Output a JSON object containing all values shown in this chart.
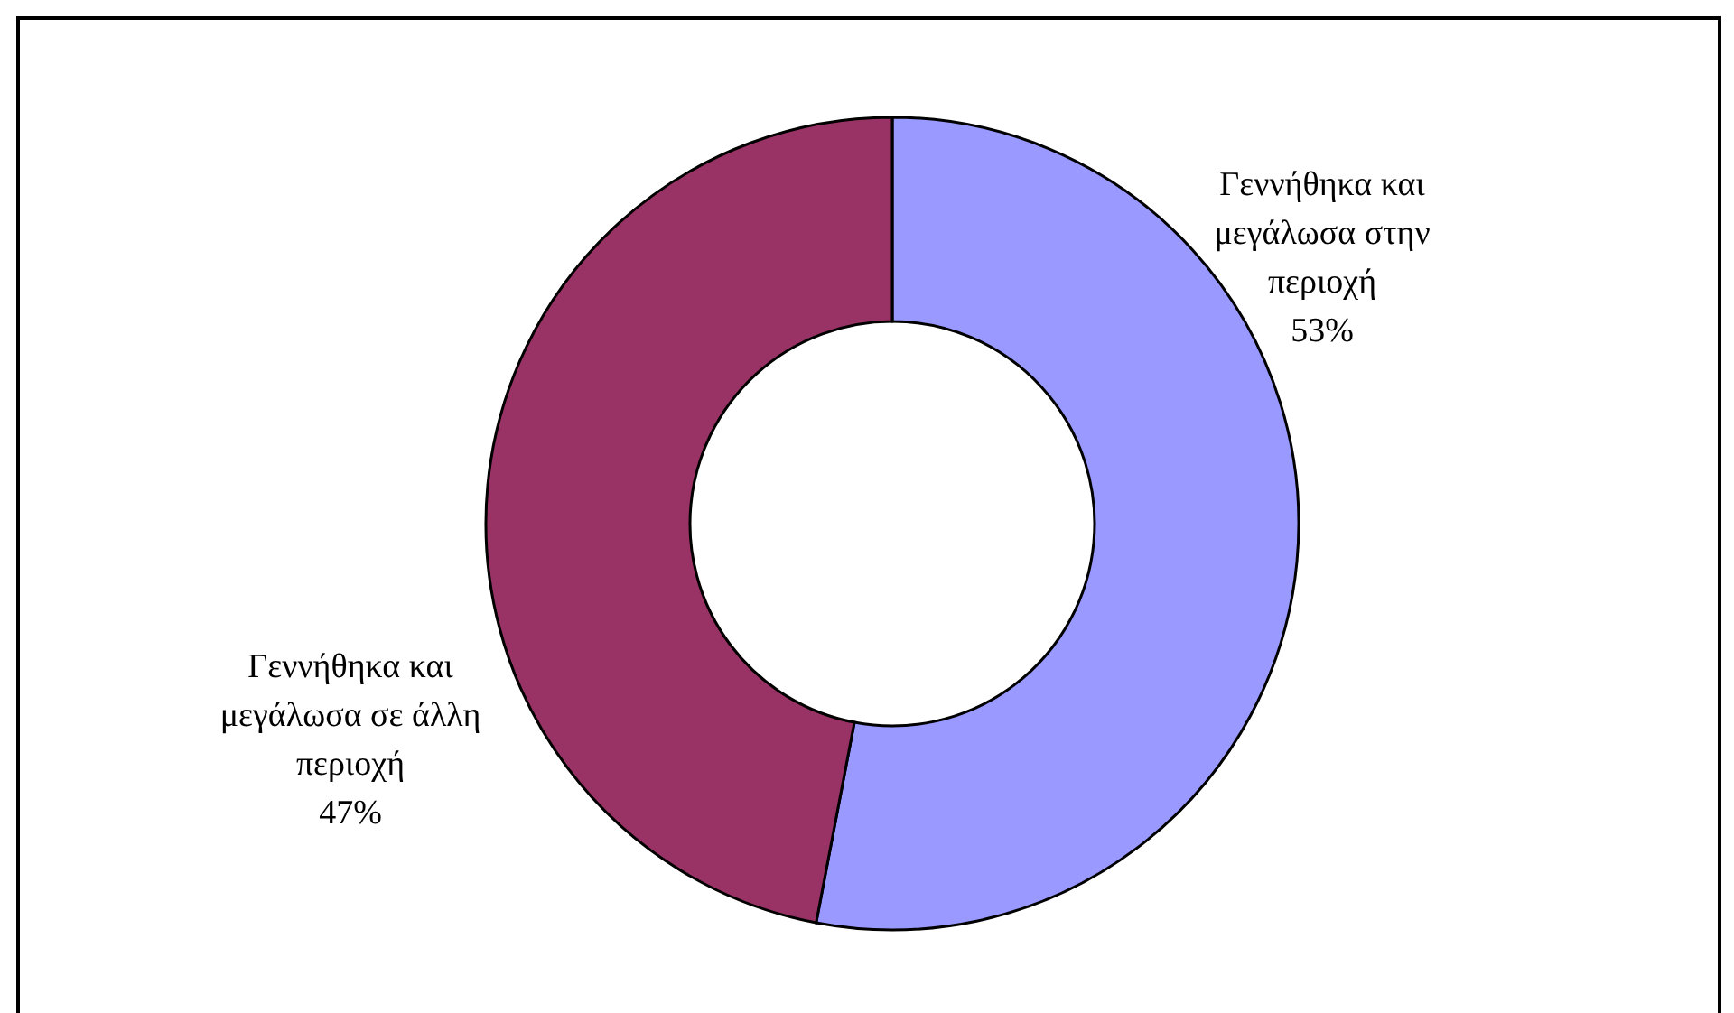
{
  "chart_data": {
    "type": "donut",
    "categories": [
      "Γεννήθηκα και μεγάλωσα στην περιοχή",
      "Γεννήθηκα και μεγάλωσα σε άλλη περιοχή"
    ],
    "values": [
      53,
      47
    ],
    "colors": [
      "#9999ff",
      "#993366"
    ],
    "value_labels": [
      "53%",
      "47%"
    ]
  }
}
